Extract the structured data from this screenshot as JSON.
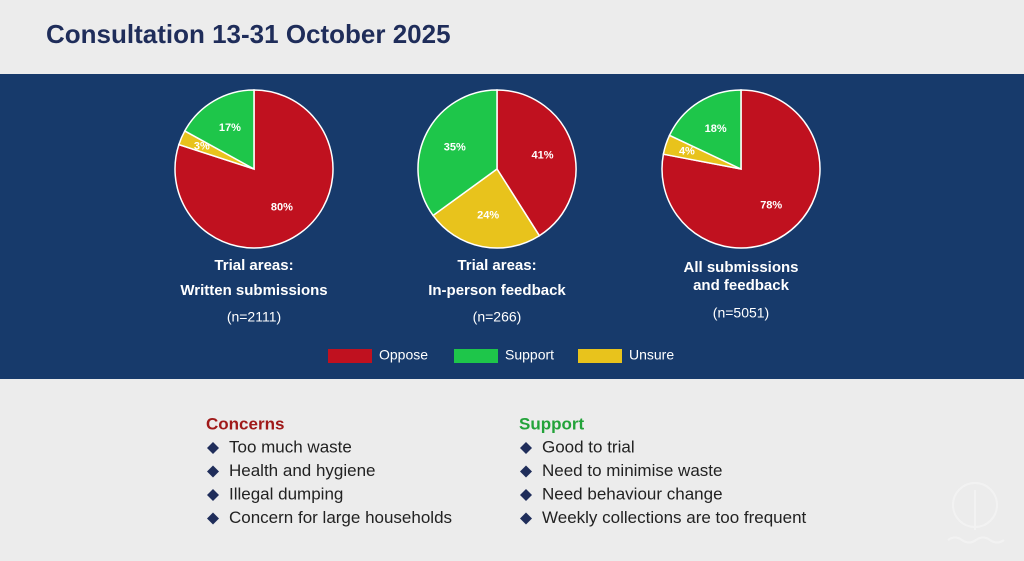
{
  "title": "Consultation 13-31 October 2025",
  "chart_data": [
    {
      "type": "pie",
      "title": [
        "Trial areas:",
        "Written submissions"
      ],
      "subtitle": "(n=2111)",
      "categories": [
        "Oppose",
        "Support",
        "Unsure"
      ],
      "values": [
        80,
        17,
        3
      ],
      "value_labels": [
        "80%",
        "17%",
        "3%"
      ],
      "colors": [
        "#c0111f",
        "#1ec64a",
        "#e8c31c"
      ]
    },
    {
      "type": "pie",
      "title": [
        "Trial areas:",
        "In-person feedback"
      ],
      "subtitle": "(n=266)",
      "categories": [
        "Oppose",
        "Support",
        "Unsure"
      ],
      "values": [
        41,
        35,
        24
      ],
      "value_labels": [
        "41%",
        "35%",
        "24%"
      ],
      "colors": [
        "#c0111f",
        "#1ec64a",
        "#e8c31c"
      ]
    },
    {
      "type": "pie",
      "title": [
        "All submissions",
        "and feedback"
      ],
      "subtitle": "(n=5051)",
      "categories": [
        "Oppose",
        "Support",
        "Unsure"
      ],
      "values": [
        78,
        18,
        4
      ],
      "value_labels": [
        "78%",
        "18%",
        "4%"
      ],
      "colors": [
        "#c0111f",
        "#1ec64a",
        "#e8c31c"
      ]
    }
  ],
  "concerns": {
    "heading": "Concerns",
    "items": [
      "Too much waste",
      "Health and hygiene",
      "Illegal dumping",
      "Concern for large households"
    ]
  },
  "support": {
    "heading": "Support",
    "items": [
      "Good to trial",
      "Need to minimise waste",
      "Need behaviour change",
      "Weekly collections are too frequent"
    ]
  }
}
